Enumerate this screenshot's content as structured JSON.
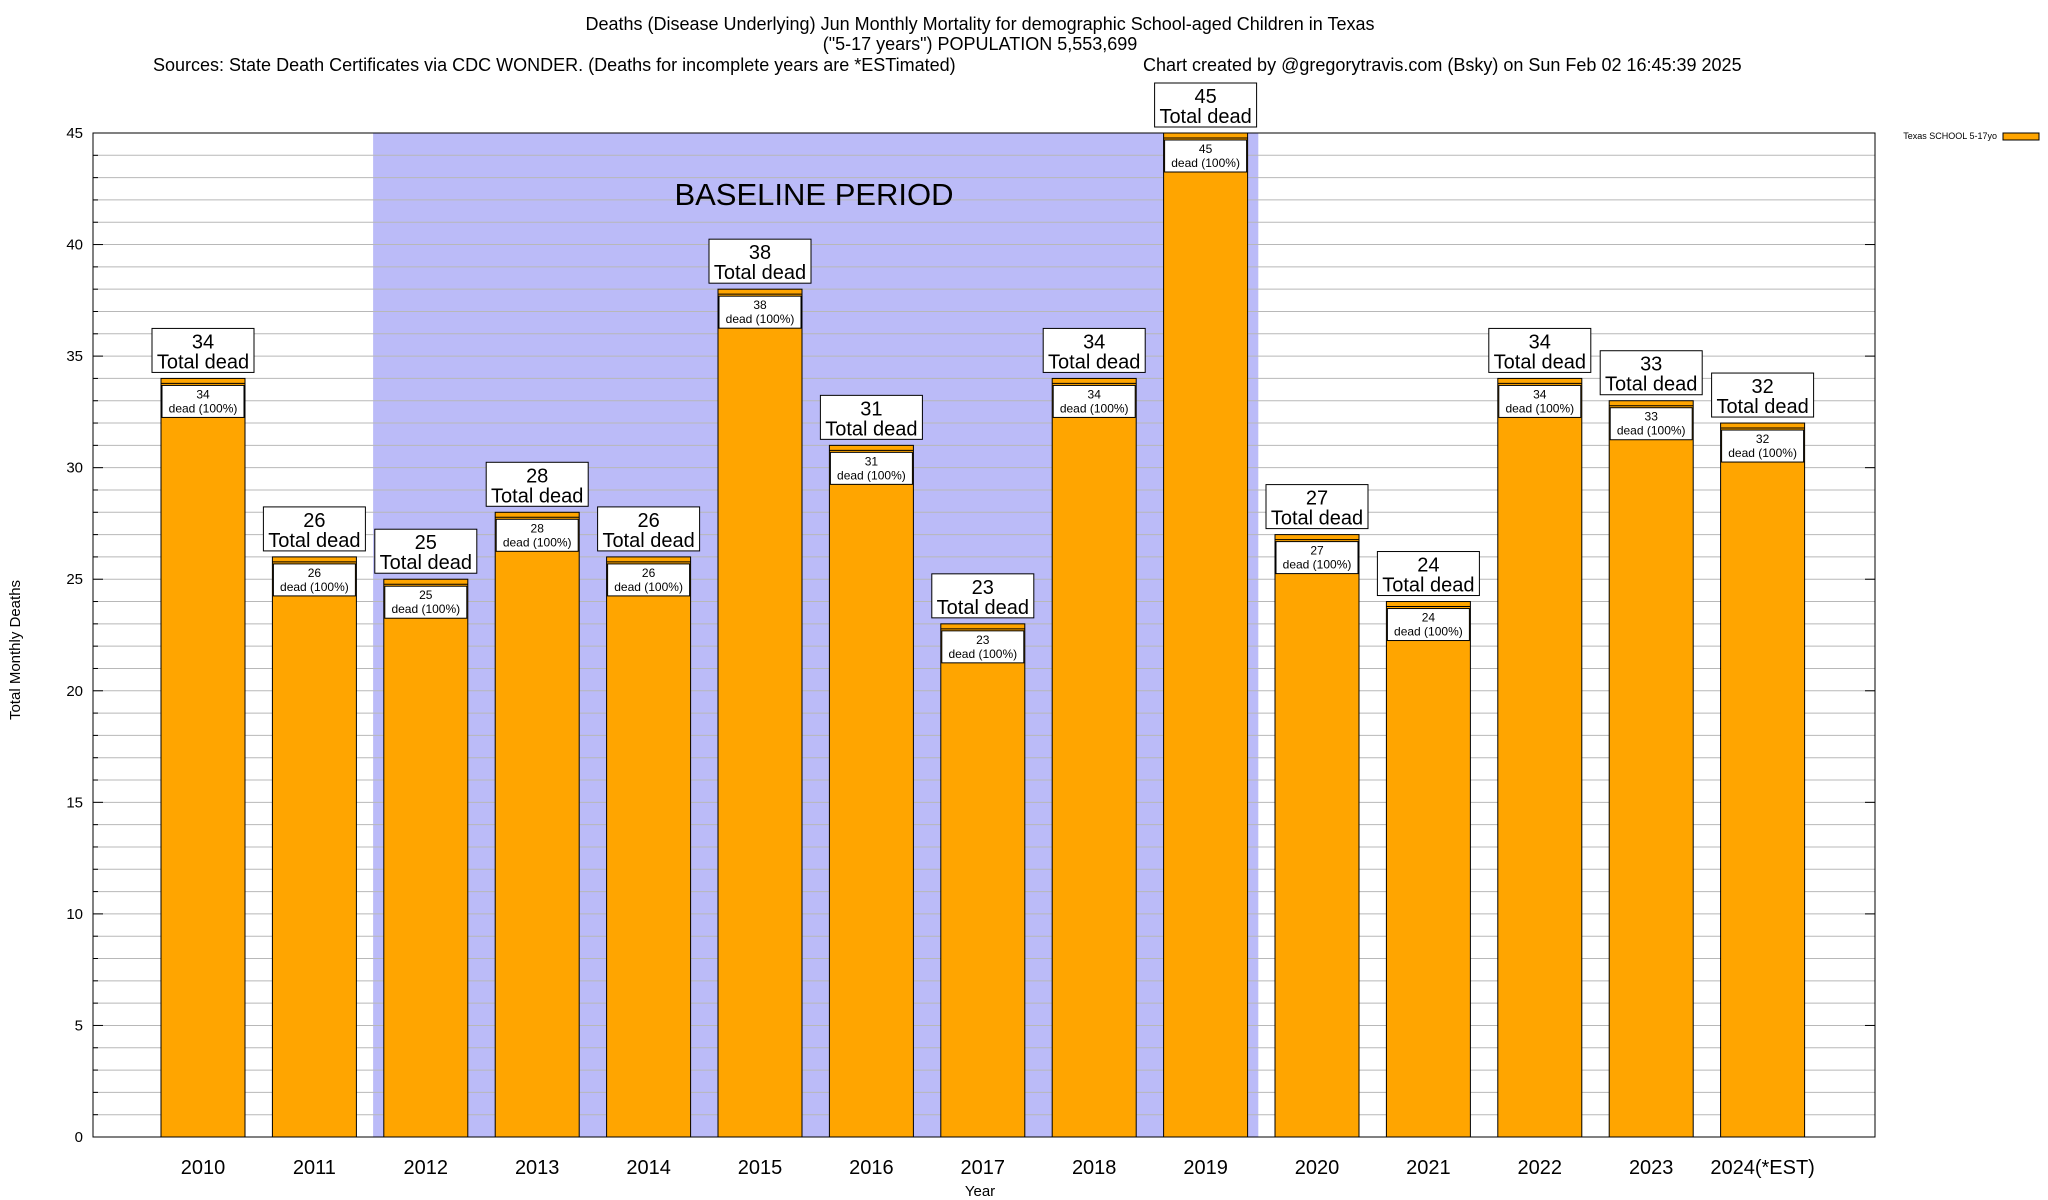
{
  "header": {
    "title_line1": "Deaths (Disease Underlying) Jun Monthly Mortality for demographic School-aged Children in Texas",
    "title_line2": "(\"5-17 years\") POPULATION 5,553,699",
    "sources": "Sources: State Death Certificates via CDC WONDER. (Deaths for incomplete years are *ESTimated)",
    "credit": "Chart created by @gregorytravis.com (Bsky) on Sun Feb 02 16:45:39 2025"
  },
  "colors": {
    "bar": "#FFA500",
    "baseline_band": "#BBBBF8",
    "bar_stroke": "#000000"
  },
  "chart_data": {
    "type": "bar",
    "xlabel": "Year",
    "ylabel": "Total Monthly Deaths",
    "ylim": [
      0,
      45
    ],
    "y_major_ticks": [
      0,
      5,
      10,
      15,
      20,
      25,
      30,
      35,
      40,
      45
    ],
    "grid": true,
    "legend": {
      "label": "Texas SCHOOL 5-17yo",
      "placement": "top-right outside"
    },
    "baseline": {
      "label": "BASELINE PERIOD",
      "from": "2012",
      "to": "2019"
    },
    "total_label_suffix": "Total dead",
    "segment_label_suffix": "dead (100%)",
    "categories": [
      "2010",
      "2011",
      "2012",
      "2013",
      "2014",
      "2015",
      "2016",
      "2017",
      "2018",
      "2019",
      "2020",
      "2021",
      "2022",
      "2023",
      "2024(*EST)"
    ],
    "series": [
      {
        "name": "Texas SCHOOL 5-17yo",
        "values": [
          34,
          26,
          25,
          28,
          26,
          38,
          31,
          23,
          34,
          45,
          27,
          24,
          34,
          33,
          32
        ]
      }
    ]
  }
}
